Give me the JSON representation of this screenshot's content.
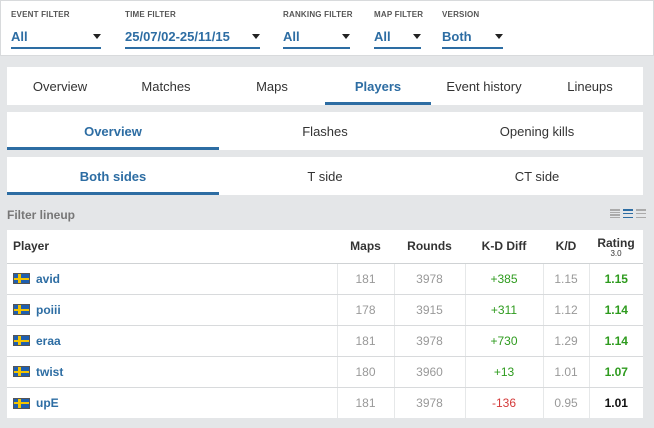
{
  "filters": [
    {
      "label": "EVENT FILTER",
      "value": "All"
    },
    {
      "label": "TIME FILTER",
      "value": "25/07/02-25/11/15"
    },
    {
      "label": "RANKING FILTER",
      "value": "All"
    },
    {
      "label": "MAP FILTER",
      "value": "All"
    },
    {
      "label": "VERSION",
      "value": "Both"
    }
  ],
  "main_tabs": [
    {
      "label": "Overview",
      "active": false
    },
    {
      "label": "Matches",
      "active": false
    },
    {
      "label": "Maps",
      "active": false
    },
    {
      "label": "Players",
      "active": true
    },
    {
      "label": "Event history",
      "active": false
    },
    {
      "label": "Lineups",
      "active": false
    }
  ],
  "sub_tabs": [
    {
      "label": "Overview",
      "active": true
    },
    {
      "label": "Flashes",
      "active": false
    },
    {
      "label": "Opening kills",
      "active": false
    }
  ],
  "side_tabs": [
    {
      "label": "Both sides",
      "active": true
    },
    {
      "label": "T side",
      "active": false
    },
    {
      "label": "CT side",
      "active": false
    }
  ],
  "lineup": {
    "label": "Filter lineup"
  },
  "table": {
    "headers": {
      "player": "Player",
      "maps": "Maps",
      "rounds": "Rounds",
      "kd_diff": "K-D Diff",
      "kd": "K/D",
      "rating": "Rating",
      "rating_version": "3.0"
    },
    "rows": [
      {
        "flag": "sweden-flag",
        "name": "avid",
        "maps": "181",
        "rounds": "3978",
        "kd_diff": "+385",
        "kd": "1.15",
        "rating": "1.15"
      },
      {
        "flag": "sweden-flag",
        "name": "poiii",
        "maps": "178",
        "rounds": "3915",
        "kd_diff": "+311",
        "kd": "1.12",
        "rating": "1.14"
      },
      {
        "flag": "sweden-flag",
        "name": "eraa",
        "maps": "181",
        "rounds": "3978",
        "kd_diff": "+730",
        "kd": "1.29",
        "rating": "1.14"
      },
      {
        "flag": "sweden-flag",
        "name": "twist",
        "maps": "180",
        "rounds": "3960",
        "kd_diff": "+13",
        "kd": "1.01",
        "rating": "1.07"
      },
      {
        "flag": "sweden-flag",
        "name": "upE",
        "maps": "181",
        "rounds": "3978",
        "kd_diff": "-136",
        "kd": "0.95",
        "rating": "1.01"
      }
    ]
  },
  "colors": {
    "accent": "#2d6da3",
    "positive": "#2e9b1e",
    "negative": "#d43a3a"
  }
}
